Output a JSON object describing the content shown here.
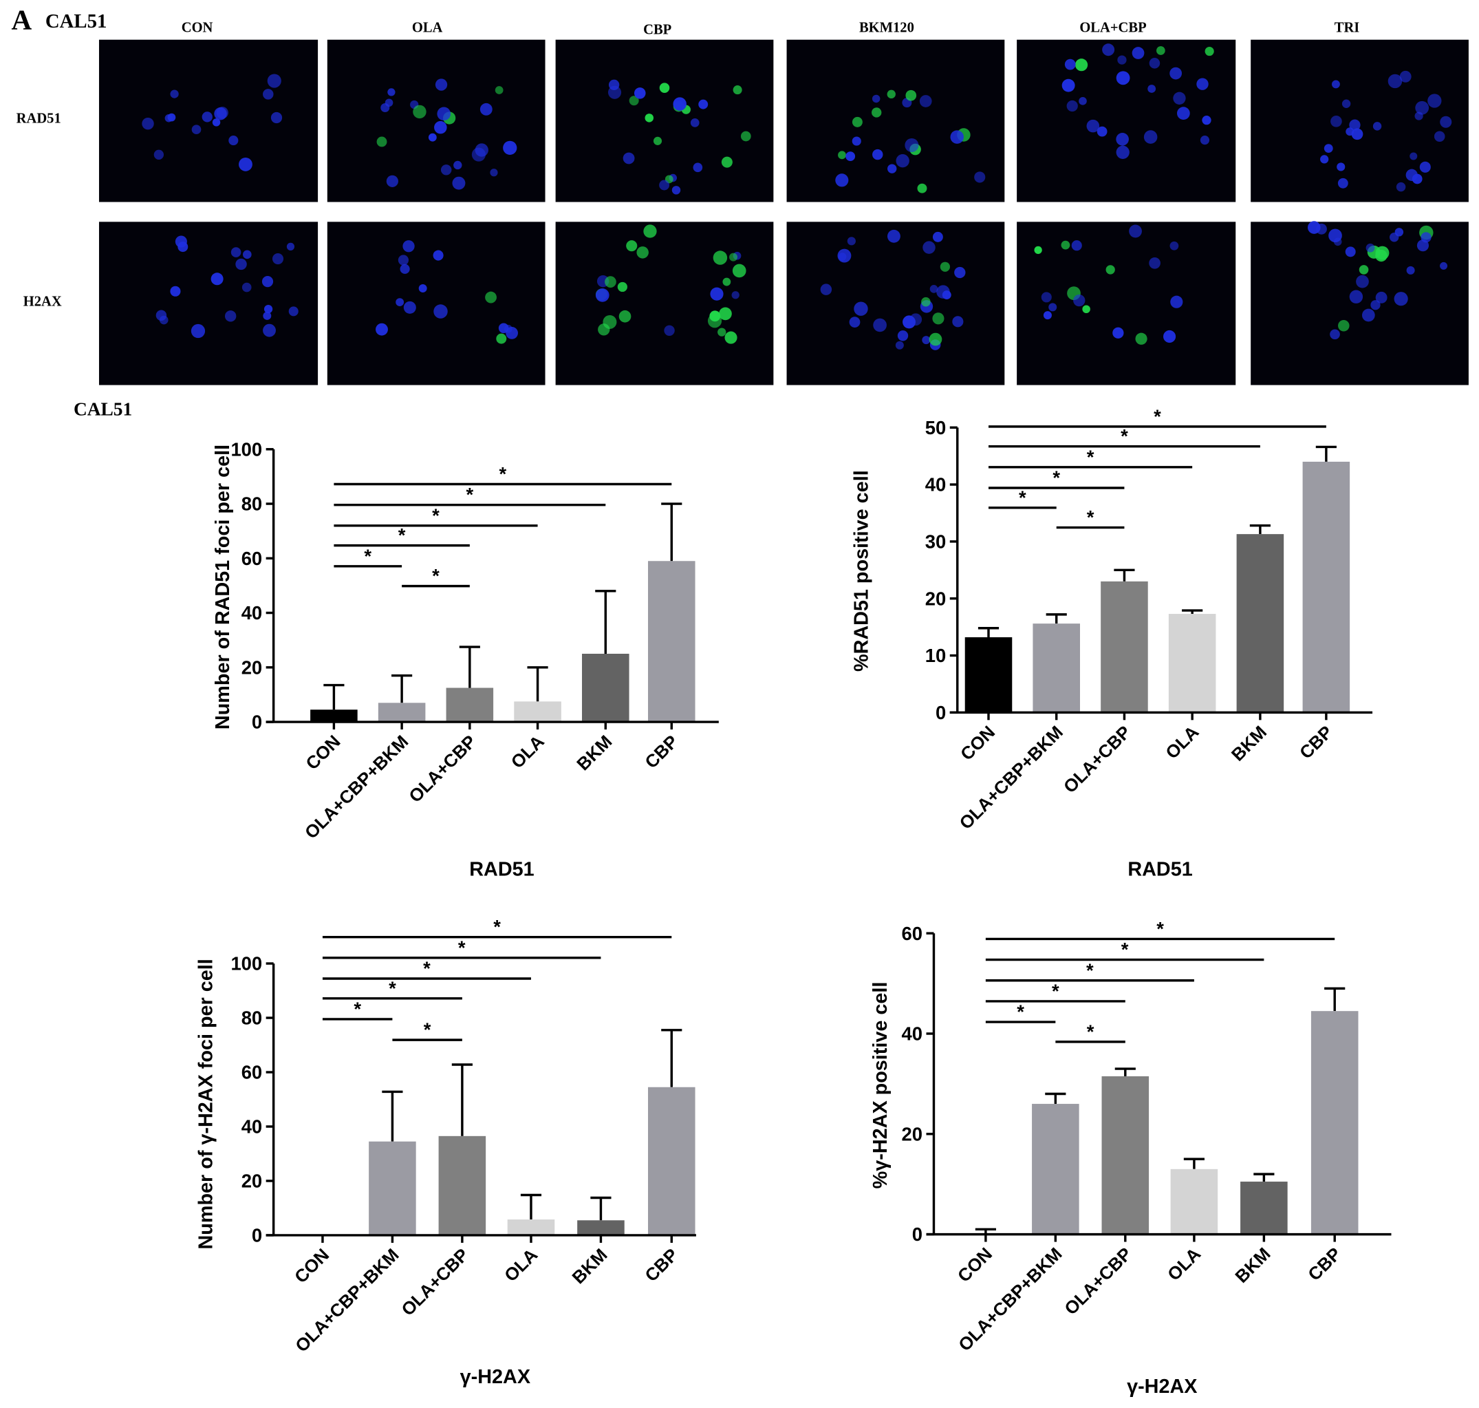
{
  "figure": {
    "panel_letter": "A",
    "cell_line": "CAL51",
    "columns": [
      "CON",
      "OLA",
      "CBP",
      "BKM120",
      "OLA+CBP",
      "TRI"
    ],
    "rows": [
      "RAD51",
      "H2AX"
    ],
    "charts_header": "CAL51",
    "stain_colors": {
      "nuclei": "#1f2fe0",
      "foci": "#22d84a",
      "background": "#02020a"
    }
  },
  "chart_data": [
    {
      "type": "bar",
      "title": "RAD51",
      "ylabel": "Number of RAD51 foci per cell",
      "categories": [
        "CON",
        "OLA+CBP+BKM",
        "OLA+CBP",
        "OLA",
        "BKM",
        "CBP"
      ],
      "values": [
        4.5,
        7,
        12.5,
        7.5,
        25,
        59
      ],
      "error": [
        9,
        10,
        15,
        12.5,
        23,
        21
      ],
      "ylim": [
        0,
        100
      ],
      "yticks": [
        0,
        20,
        40,
        60,
        80,
        100
      ],
      "colors": [
        "#000000",
        "#9b9ba3",
        "#808080",
        "#d4d4d4",
        "#636363",
        "#9b9ba3"
      ],
      "significance": [
        {
          "from": "CON",
          "to": "CBP",
          "label": "*"
        },
        {
          "from": "CON",
          "to": "BKM",
          "label": "*"
        },
        {
          "from": "CON",
          "to": "OLA",
          "label": "*"
        },
        {
          "from": "CON",
          "to": "OLA+CBP",
          "label": "*"
        },
        {
          "from": "CON",
          "to": "OLA+CBP+BKM",
          "label": "*"
        },
        {
          "from": "OLA+CBP+BKM",
          "to": "OLA+CBP",
          "label": "*"
        }
      ]
    },
    {
      "type": "bar",
      "title": "RAD51",
      "ylabel": "%RAD51 positive cell",
      "categories": [
        "CON",
        "OLA+CBP+BKM",
        "OLA+CBP",
        "OLA",
        "BKM",
        "CBP"
      ],
      "values": [
        13.2,
        15.6,
        23,
        17.3,
        31.3,
        44
      ],
      "error": [
        1.6,
        1.6,
        2,
        0.6,
        1.5,
        2.6
      ],
      "ylim": [
        0,
        50
      ],
      "yticks": [
        0,
        10,
        20,
        30,
        40,
        50
      ],
      "colors": [
        "#000000",
        "#9b9ba3",
        "#808080",
        "#d4d4d4",
        "#636363",
        "#9b9ba3"
      ],
      "significance": [
        {
          "from": "CON",
          "to": "CBP",
          "label": "*"
        },
        {
          "from": "CON",
          "to": "BKM",
          "label": "*"
        },
        {
          "from": "CON",
          "to": "OLA",
          "label": "*"
        },
        {
          "from": "CON",
          "to": "OLA+CBP",
          "label": "*"
        },
        {
          "from": "CON",
          "to": "OLA+CBP+BKM",
          "label": "*"
        },
        {
          "from": "OLA+CBP+BKM",
          "to": "OLA+CBP",
          "label": "*"
        }
      ]
    },
    {
      "type": "bar",
      "title": "γ-H2AX",
      "ylabel": "Number of γ-H2AX foci per cell",
      "categories": [
        "CON",
        "OLA+CBP+BKM",
        "OLA+CBP",
        "OLA",
        "BKM",
        "CBP"
      ],
      "values": [
        0,
        34.5,
        36.5,
        5.8,
        5.5,
        54.5
      ],
      "error": [
        0,
        18.3,
        26.3,
        9,
        8.3,
        21
      ],
      "ylim": [
        0,
        100
      ],
      "yticks": [
        0,
        20,
        40,
        60,
        80,
        100
      ],
      "colors": [
        "#000000",
        "#9b9ba3",
        "#808080",
        "#d4d4d4",
        "#636363",
        "#9b9ba3"
      ],
      "significance": [
        {
          "from": "CON",
          "to": "CBP",
          "label": "*"
        },
        {
          "from": "CON",
          "to": "BKM",
          "label": "*"
        },
        {
          "from": "CON",
          "to": "OLA",
          "label": "*"
        },
        {
          "from": "CON",
          "to": "OLA+CBP",
          "label": "*"
        },
        {
          "from": "CON",
          "to": "OLA+CBP+BKM",
          "label": "*"
        },
        {
          "from": "OLA+CBP+BKM",
          "to": "OLA+CBP",
          "label": "*"
        }
      ]
    },
    {
      "type": "bar",
      "title": "γ-H2AX",
      "ylabel": "%γ-H2AX positive cell",
      "categories": [
        "CON",
        "OLA+CBP+BKM",
        "OLA+CBP",
        "OLA",
        "BKM",
        "CBP"
      ],
      "values": [
        0,
        26,
        31.5,
        13,
        10.5,
        44.5
      ],
      "error": [
        1,
        2,
        1.5,
        2,
        1.5,
        4.5
      ],
      "ylim": [
        0,
        60
      ],
      "yticks": [
        0,
        20,
        40,
        60
      ],
      "colors": [
        "#000000",
        "#9b9ba3",
        "#808080",
        "#d4d4d4",
        "#636363",
        "#9b9ba3"
      ],
      "significance": [
        {
          "from": "CON",
          "to": "CBP",
          "label": "*"
        },
        {
          "from": "CON",
          "to": "BKM",
          "label": "*"
        },
        {
          "from": "CON",
          "to": "OLA",
          "label": "*"
        },
        {
          "from": "CON",
          "to": "OLA+CBP",
          "label": "*"
        },
        {
          "from": "CON",
          "to": "OLA+CBP+BKM",
          "label": "*"
        },
        {
          "from": "OLA+CBP+BKM",
          "to": "OLA+CBP",
          "label": "*"
        }
      ]
    }
  ]
}
